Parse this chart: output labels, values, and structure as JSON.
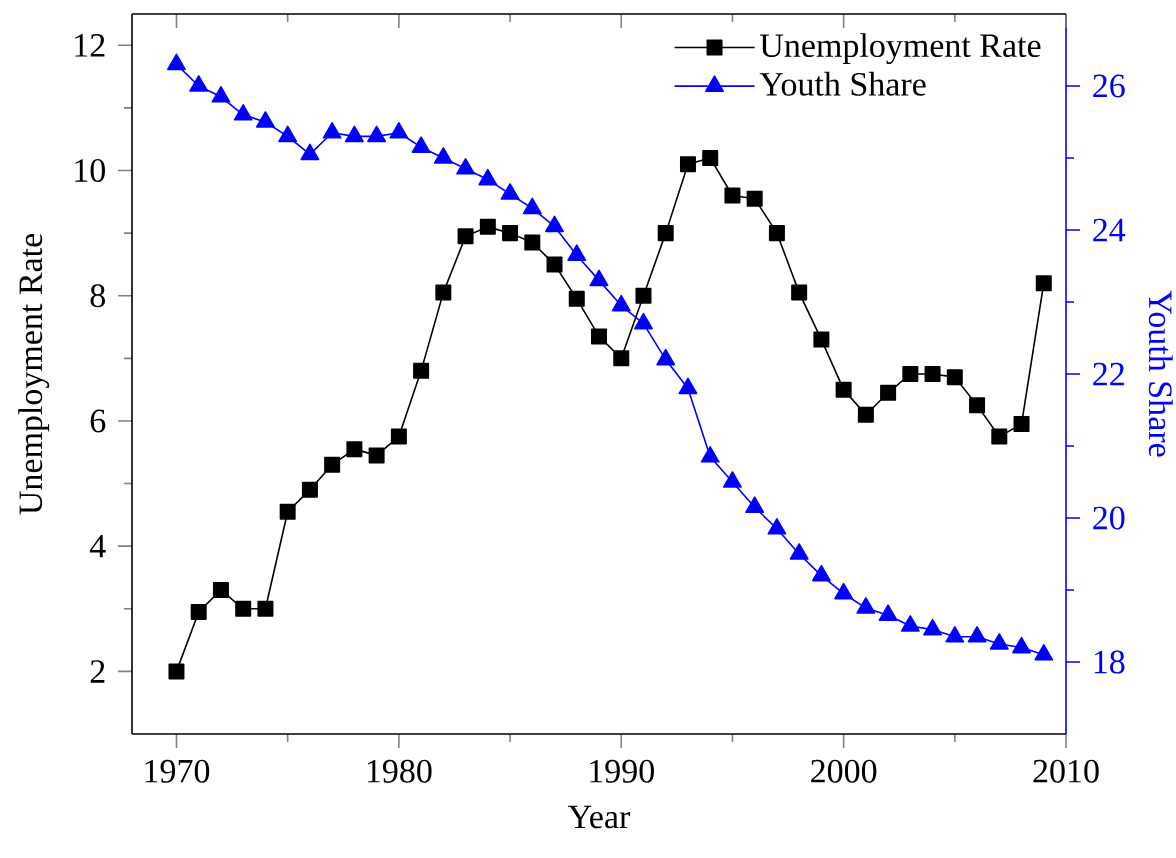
{
  "chart_data": {
    "type": "line",
    "xlabel": "Year",
    "ylabel": "Unemployment Rate",
    "y2label": "Youth Share",
    "x": [
      1970,
      1971,
      1972,
      1973,
      1974,
      1975,
      1976,
      1977,
      1978,
      1979,
      1980,
      1981,
      1982,
      1983,
      1984,
      1985,
      1986,
      1987,
      1988,
      1989,
      1990,
      1991,
      1992,
      1993,
      1994,
      1995,
      1996,
      1997,
      1998,
      1999,
      2000,
      2001,
      2002,
      2003,
      2004,
      2005,
      2006,
      2007,
      2008,
      2009
    ],
    "series": [
      {
        "name": "Unemployment Rate",
        "color": "#000000",
        "marker": "square",
        "values": [
          2.0,
          2.95,
          3.3,
          3.0,
          3.0,
          4.55,
          4.9,
          5.3,
          5.55,
          5.45,
          5.75,
          6.8,
          8.05,
          8.95,
          9.1,
          9.0,
          8.85,
          8.5,
          7.95,
          7.35,
          7.0,
          8.0,
          9.0,
          10.1,
          10.2,
          9.6,
          9.55,
          9.0,
          8.05,
          7.3,
          6.5,
          6.1,
          6.45,
          6.75,
          6.75,
          6.7,
          6.25,
          5.75,
          5.95,
          8.2
        ]
      },
      {
        "name": "Youth Share",
        "color": "#0000ff",
        "marker": "triangle",
        "axis": "y2",
        "values": [
          26.3,
          26.0,
          25.85,
          25.6,
          25.5,
          25.3,
          25.05,
          25.35,
          25.3,
          25.3,
          25.35,
          25.15,
          25.0,
          24.85,
          24.7,
          24.5,
          24.3,
          24.05,
          23.65,
          23.3,
          22.95,
          22.7,
          22.2,
          21.8,
          20.85,
          20.5,
          20.15,
          19.85,
          19.5,
          19.2,
          18.95,
          18.75,
          18.65,
          18.5,
          18.45,
          18.35,
          18.35,
          18.25,
          18.2,
          18.1
        ]
      }
    ],
    "xlim": [
      1968,
      2010
    ],
    "xticks": [
      1970,
      {
        "value": 1975,
        "label": null
      },
      1980,
      {
        "value": 1985,
        "label": null
      },
      1990,
      {
        "value": 1995,
        "label": null
      },
      2000,
      {
        "value": 2005,
        "label": null
      },
      2010
    ],
    "ylim": [
      1,
      12.5
    ],
    "yticks": [
      2,
      {
        "value": 3,
        "label": null
      },
      4,
      {
        "value": 5,
        "label": null
      },
      6,
      {
        "value": 7,
        "label": null
      },
      8,
      {
        "value": 9,
        "label": null
      },
      10,
      {
        "value": 11,
        "label": null
      },
      12
    ],
    "y2lim": [
      17,
      27
    ],
    "y2ticks": [
      18,
      {
        "value": 19,
        "label": null
      },
      20,
      {
        "value": 21,
        "label": null
      },
      22,
      {
        "value": 23,
        "label": null
      },
      24,
      {
        "value": 25,
        "label": null
      },
      26
    ],
    "legend": "top right"
  }
}
